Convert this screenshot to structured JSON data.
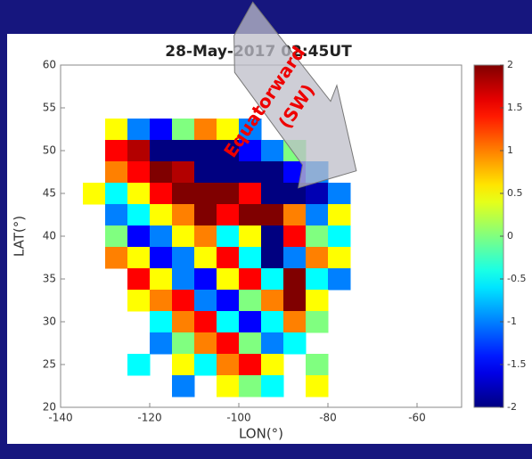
{
  "chart_data": {
    "type": "heatmap",
    "title": "28-May-2017 02:45UT",
    "x_label": "LON(°)",
    "y_label": "LAT(°)",
    "annotation": [
      "Equatorward",
      "(SW)"
    ],
    "x": [
      -132.5,
      -127.5,
      -122.5,
      -117.5,
      -112.5,
      -107.5,
      -102.5,
      -97.5,
      -92.5,
      -87.5,
      -82.5,
      -77.5,
      -72.5
    ],
    "y": [
      52.5,
      50,
      47.5,
      45,
      42.5,
      40,
      37.5,
      35,
      32.5,
      30,
      27.5,
      25,
      22.5
    ],
    "z": [
      [
        null,
        0.5,
        -1,
        -1.5,
        0,
        1,
        0.5,
        -1,
        null,
        null,
        null,
        null,
        null
      ],
      [
        null,
        1.5,
        1.8,
        -2,
        -2,
        -2,
        -2,
        -1.5,
        -1,
        0,
        null,
        null,
        null
      ],
      [
        null,
        1,
        1.5,
        2,
        1.8,
        -2,
        -2,
        -2,
        -2,
        -1.5,
        -1,
        null,
        null
      ],
      [
        0.5,
        -0.5,
        0.5,
        1.5,
        2,
        2,
        2,
        1.5,
        -2,
        -2,
        -1.8,
        -1,
        null
      ],
      [
        null,
        -1,
        -0.5,
        0.5,
        1,
        2,
        1.5,
        2,
        2,
        1,
        -1,
        0.5,
        null
      ],
      [
        null,
        0,
        -1.5,
        -1,
        0.5,
        1,
        -0.5,
        0.5,
        -2,
        1.5,
        0,
        -0.5,
        null
      ],
      [
        null,
        1,
        0.5,
        -1.5,
        -1,
        0.5,
        1.5,
        -0.5,
        -2,
        -1,
        1,
        0.5,
        null
      ],
      [
        null,
        null,
        1.5,
        0.5,
        -1,
        -1.5,
        0.5,
        1.5,
        -0.5,
        2,
        -0.5,
        -1,
        null
      ],
      [
        null,
        null,
        0.5,
        1,
        1.5,
        -1,
        -1.5,
        0,
        1,
        2,
        0.5,
        null,
        null
      ],
      [
        null,
        null,
        null,
        -0.5,
        1,
        1.5,
        -0.5,
        -1.5,
        -0.5,
        1,
        0,
        null,
        null
      ],
      [
        null,
        null,
        null,
        -1,
        0,
        1,
        1.5,
        0,
        -1,
        -0.5,
        null,
        null,
        null
      ],
      [
        null,
        null,
        -0.5,
        null,
        0.5,
        -0.5,
        1,
        1.5,
        0.5,
        null,
        0,
        null,
        null
      ],
      [
        null,
        null,
        null,
        null,
        -1,
        null,
        0.5,
        0,
        -0.5,
        null,
        0.5,
        null,
        null
      ]
    ],
    "xlim": [
      -140,
      -50
    ],
    "xticks": [
      -140,
      -120,
      -100,
      -80,
      -60
    ],
    "ylim": [
      20,
      60
    ],
    "yticks": [
      20,
      25,
      30,
      35,
      40,
      45,
      50,
      55,
      60
    ],
    "clim": [
      -2,
      2
    ],
    "cticks": [
      -2,
      -1.5,
      -1,
      -0.5,
      0,
      0.5,
      1,
      1.5,
      2
    ],
    "colormap": "jet"
  }
}
